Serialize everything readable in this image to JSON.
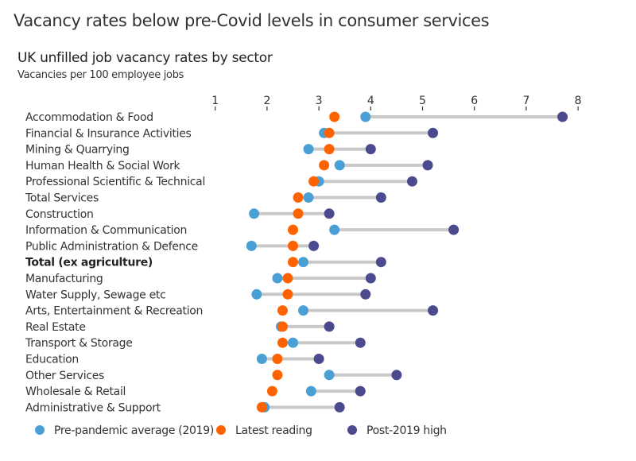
{
  "header": {
    "title": "Vacancy rates below pre-Covid levels in consumer services"
  },
  "chart_data": {
    "type": "dumbbell",
    "title": "UK unfilled job vacancy rates by sector",
    "subtitle": "Vacancies per 100 employee jobs",
    "xlabel": "",
    "ylabel": "",
    "xlim": [
      1,
      8
    ],
    "xticks": [
      "1",
      "2",
      "3",
      "4",
      "5",
      "6",
      "7",
      "8"
    ],
    "xtick_values": [
      1,
      2,
      3,
      4,
      5,
      6,
      7,
      8
    ],
    "grid": false,
    "legend_position": "bottom",
    "colors": {
      "pre_pandemic": "#4a9fd5",
      "latest": "#ff6200",
      "post_2019_high": "#4b4a8e",
      "bar": "#c9c9c9"
    },
    "series": [
      {
        "key": "pre_pandemic",
        "name": "Pre-pandemic average (2019)"
      },
      {
        "key": "latest",
        "name": "Latest reading"
      },
      {
        "key": "post_2019_high",
        "name": "Post-2019 high"
      }
    ],
    "categories": [
      {
        "label": "Accommodation & Food",
        "bold": false,
        "pre_pandemic": 3.9,
        "latest": 3.3,
        "post_2019_high": 7.7
      },
      {
        "label": "Financial & Insurance Activities",
        "bold": false,
        "pre_pandemic": 3.1,
        "latest": 3.2,
        "post_2019_high": 5.2
      },
      {
        "label": "Mining & Quarrying",
        "bold": false,
        "pre_pandemic": 2.8,
        "latest": 3.2,
        "post_2019_high": 4.0
      },
      {
        "label": "Human Health & Social Work",
        "bold": false,
        "pre_pandemic": 3.4,
        "latest": 3.1,
        "post_2019_high": 5.1
      },
      {
        "label": "Professional Scientific & Technical",
        "bold": false,
        "pre_pandemic": 3.0,
        "latest": 2.9,
        "post_2019_high": 4.8
      },
      {
        "label": "Total Services",
        "bold": false,
        "pre_pandemic": 2.8,
        "latest": 2.6,
        "post_2019_high": 4.2
      },
      {
        "label": "Construction",
        "bold": false,
        "pre_pandemic": 1.75,
        "latest": 2.6,
        "post_2019_high": 3.2
      },
      {
        "label": "Information & Communication",
        "bold": false,
        "pre_pandemic": 3.3,
        "latest": 2.5,
        "post_2019_high": 5.6
      },
      {
        "label": "Public Administration & Defence",
        "bold": false,
        "pre_pandemic": 1.7,
        "latest": 2.5,
        "post_2019_high": 2.9
      },
      {
        "label": "Total (ex agriculture)",
        "bold": true,
        "pre_pandemic": 2.7,
        "latest": 2.5,
        "post_2019_high": 4.2
      },
      {
        "label": "Manufacturing",
        "bold": false,
        "pre_pandemic": 2.2,
        "latest": 2.4,
        "post_2019_high": 4.0
      },
      {
        "label": "Water Supply, Sewage etc",
        "bold": false,
        "pre_pandemic": 1.8,
        "latest": 2.4,
        "post_2019_high": 3.9
      },
      {
        "label": "Arts, Entertainment & Recreation",
        "bold": false,
        "pre_pandemic": 2.7,
        "latest": 2.3,
        "post_2019_high": 5.2
      },
      {
        "label": "Real Estate",
        "bold": false,
        "pre_pandemic": 2.27,
        "latest": 2.3,
        "post_2019_high": 3.2
      },
      {
        "label": "Transport & Storage",
        "bold": false,
        "pre_pandemic": 2.5,
        "latest": 2.3,
        "post_2019_high": 3.8
      },
      {
        "label": "Education",
        "bold": false,
        "pre_pandemic": 1.9,
        "latest": 2.2,
        "post_2019_high": 3.0
      },
      {
        "label": "Other Services",
        "bold": false,
        "pre_pandemic": 3.2,
        "latest": 2.2,
        "post_2019_high": 4.5
      },
      {
        "label": "Wholesale & Retail",
        "bold": false,
        "pre_pandemic": 2.85,
        "latest": 2.1,
        "post_2019_high": 3.8
      },
      {
        "label": "Administrative & Support",
        "bold": false,
        "pre_pandemic": 1.95,
        "latest": 1.9,
        "post_2019_high": 3.4
      }
    ]
  }
}
